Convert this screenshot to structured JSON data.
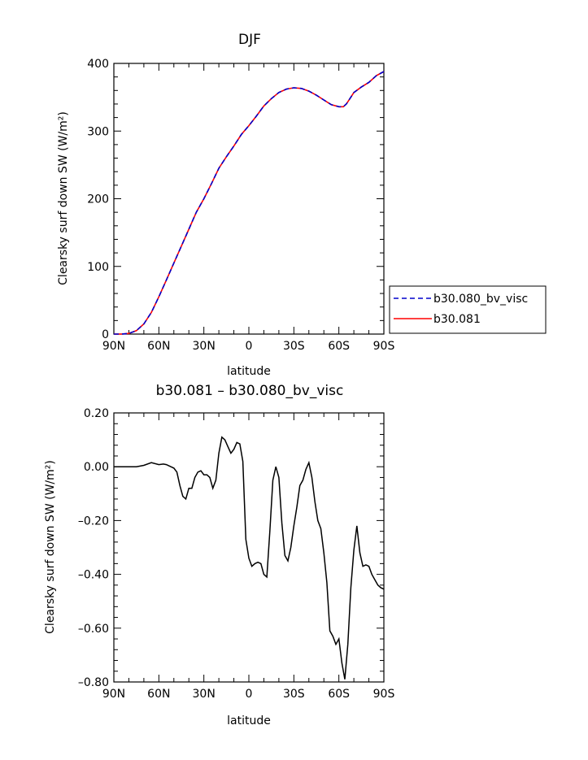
{
  "chart_data": [
    {
      "type": "line",
      "title": "DJF",
      "xlabel": "latitude",
      "ylabel": "Clearsky surf down SW (W/m²)",
      "xlim": [
        -90,
        90
      ],
      "ylim": [
        0,
        400
      ],
      "xticks": [
        -90,
        -60,
        -30,
        0,
        30,
        60,
        90
      ],
      "xtick_labels": [
        "90N",
        "60N",
        "30N",
        "0",
        "30S",
        "60S",
        "90S"
      ],
      "yticks": [
        0,
        100,
        200,
        300,
        400
      ],
      "ytick_labels": [
        "0",
        "100",
        "200",
        "300",
        "400"
      ],
      "x": [
        -90,
        -85,
        -80,
        -75,
        -70,
        -65,
        -60,
        -55,
        -50,
        -45,
        -40,
        -35,
        -30,
        -25,
        -20,
        -15,
        -10,
        -5,
        0,
        5,
        10,
        15,
        20,
        25,
        30,
        35,
        40,
        45,
        50,
        55,
        60,
        63,
        65,
        68,
        70,
        75,
        80,
        85,
        90
      ],
      "series": [
        {
          "name": "b30.080_bv_visc",
          "color": "#0000cc",
          "dash": "dashed",
          "values": [
            0,
            0,
            1,
            5,
            15,
            32,
            55,
            80,
            105,
            130,
            155,
            180,
            200,
            222,
            245,
            262,
            278,
            295,
            308,
            322,
            337,
            348,
            357,
            362,
            364,
            363,
            359,
            353,
            346,
            339,
            336,
            336,
            340,
            350,
            357,
            365,
            372,
            382,
            388
          ]
        },
        {
          "name": "b30.081",
          "color": "#ff0000",
          "dash": "solid",
          "values": [
            0,
            0,
            1,
            5,
            15,
            32,
            55,
            80,
            105,
            130,
            155,
            180,
            200,
            222,
            245,
            262,
            278,
            295,
            308,
            322,
            337,
            348,
            357,
            362,
            364,
            363,
            359,
            353,
            346,
            339,
            336,
            336,
            340,
            350,
            357,
            365,
            372,
            382,
            388
          ]
        }
      ],
      "legend": "right"
    },
    {
      "type": "line",
      "title": "b30.081 – b30.080_bv_visc",
      "xlabel": "latitude",
      "ylabel": "Clearsky surf down SW (W/m²)",
      "xlim": [
        -90,
        90
      ],
      "ylim": [
        -0.8,
        0.2
      ],
      "xticks": [
        -90,
        -60,
        -30,
        0,
        30,
        60,
        90
      ],
      "xtick_labels": [
        "90N",
        "60N",
        "30N",
        "0",
        "30S",
        "60S",
        "90S"
      ],
      "yticks": [
        0.2,
        0.0,
        -0.2,
        -0.4,
        -0.6,
        -0.8
      ],
      "ytick_labels": [
        "0.20",
        "0.00",
        "–0.20",
        "–0.40",
        "–0.60",
        "–0.80"
      ],
      "x": [
        -90,
        -75,
        -70,
        -65,
        -60,
        -57,
        -55,
        -52,
        -50,
        -48,
        -46,
        -44,
        -42,
        -40,
        -38,
        -36,
        -34,
        -32,
        -30,
        -28,
        -26,
        -24,
        -22,
        -20,
        -18,
        -16,
        -14,
        -12,
        -10,
        -8,
        -6,
        -4,
        -2,
        0,
        2,
        4,
        6,
        8,
        10,
        12,
        14,
        16,
        18,
        20,
        22,
        24,
        26,
        28,
        30,
        32,
        34,
        36,
        38,
        40,
        42,
        44,
        46,
        48,
        50,
        52,
        54,
        56,
        58,
        60,
        62,
        64,
        66,
        68,
        70,
        72,
        74,
        76,
        78,
        80,
        82,
        84,
        86,
        88,
        90
      ],
      "series": [
        {
          "name": "b30.081 – b30.080_bv_visc",
          "color": "#000000",
          "dash": "solid",
          "values": [
            0,
            0,
            0.005,
            0.015,
            0.008,
            0.01,
            0.008,
            0.0,
            -0.005,
            -0.02,
            -0.07,
            -0.11,
            -0.12,
            -0.08,
            -0.08,
            -0.04,
            -0.02,
            -0.015,
            -0.03,
            -0.03,
            -0.04,
            -0.08,
            -0.05,
            0.05,
            0.11,
            0.1,
            0.075,
            0.05,
            0.065,
            0.09,
            0.085,
            0.02,
            -0.27,
            -0.34,
            -0.37,
            -0.36,
            -0.355,
            -0.36,
            -0.4,
            -0.41,
            -0.24,
            -0.05,
            0.0,
            -0.04,
            -0.21,
            -0.33,
            -0.35,
            -0.3,
            -0.22,
            -0.15,
            -0.07,
            -0.05,
            -0.01,
            0.015,
            -0.04,
            -0.13,
            -0.2,
            -0.23,
            -0.32,
            -0.43,
            -0.61,
            -0.63,
            -0.66,
            -0.64,
            -0.73,
            -0.79,
            -0.66,
            -0.45,
            -0.31,
            -0.22,
            -0.32,
            -0.37,
            -0.365,
            -0.37,
            -0.4,
            -0.42,
            -0.44,
            -0.45,
            -0.455
          ]
        }
      ]
    }
  ]
}
